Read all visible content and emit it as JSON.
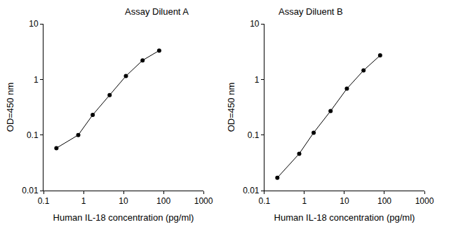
{
  "chart_data": [
    {
      "type": "line",
      "title": "Assay Diluent A",
      "x_label": "Human IL-18 concentration (pg/ml)",
      "y_label": "OD=450 nm",
      "x": [
        0.21,
        0.74,
        1.7,
        4.5,
        11.5,
        30,
        78
      ],
      "values": [
        0.058,
        0.1,
        0.23,
        0.52,
        1.15,
        2.2,
        3.3
      ],
      "color": "#000000",
      "marker": "circle",
      "log": true,
      "grid": false,
      "xlim": [
        0.1,
        1000
      ],
      "xticks": [
        0.1,
        1,
        10,
        100,
        1000
      ],
      "ylim": [
        0.01,
        10
      ],
      "yticks": [
        0.01,
        0.1,
        1,
        10
      ]
    },
    {
      "type": "line",
      "title": "Assay Diluent B",
      "x_label": "Human IL-18 concentration (pg/ml)",
      "y_label": "OD=450 nm",
      "x": [
        0.21,
        0.74,
        1.7,
        4.5,
        11.5,
        30,
        78
      ],
      "values": [
        0.017,
        0.046,
        0.11,
        0.27,
        0.68,
        1.45,
        2.7
      ],
      "color": "#000000",
      "marker": "circle",
      "log": true,
      "grid": false,
      "xlim": [
        0.1,
        1000
      ],
      "xticks": [
        0.1,
        1,
        10,
        100,
        1000
      ],
      "ylim": [
        0.01,
        10
      ],
      "yticks": [
        0.01,
        0.1,
        1,
        10
      ]
    }
  ]
}
